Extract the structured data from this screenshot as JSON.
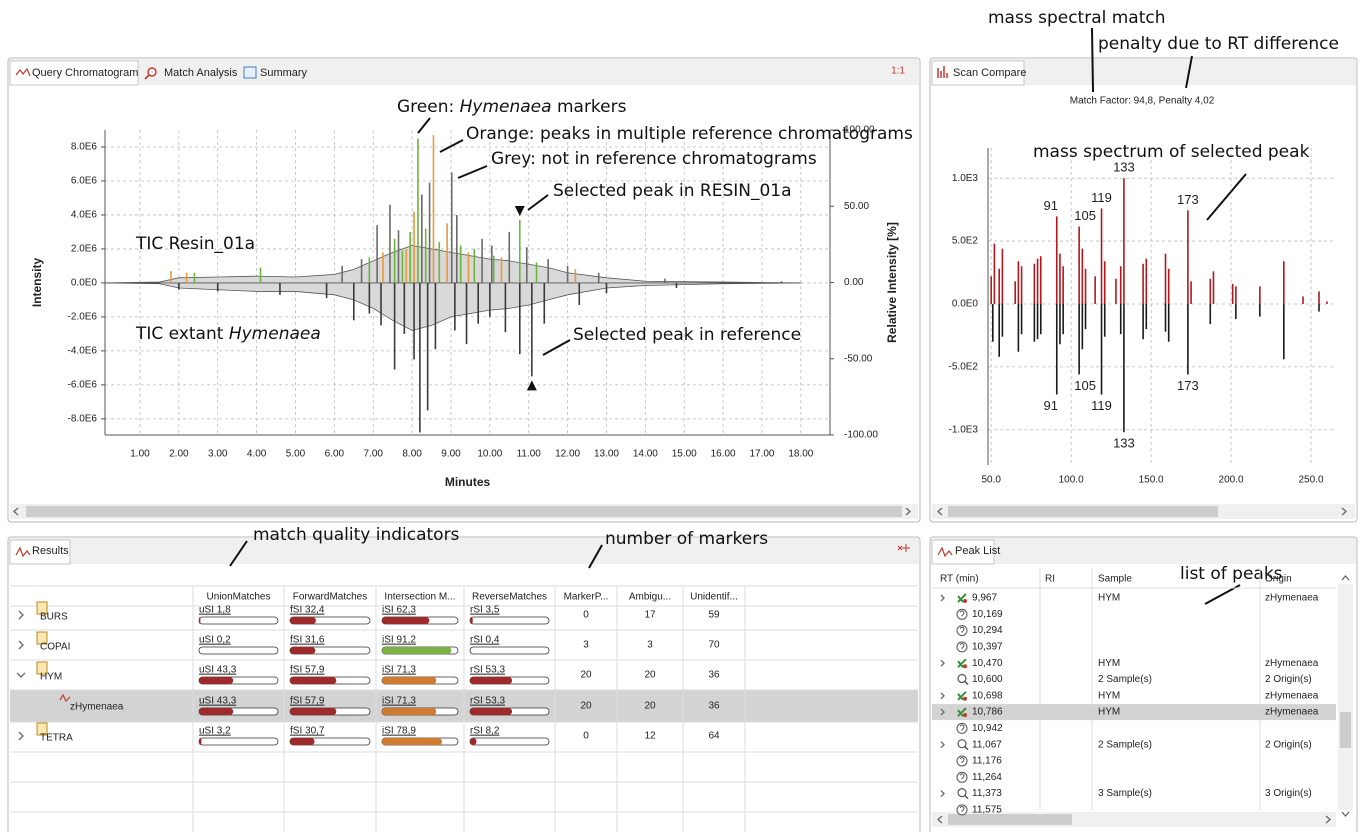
{
  "annotations": {
    "mass_spectral_match": "mass spectral match",
    "rt_penalty": "penalty due to RT difference",
    "match_quality": "match quality indicators",
    "number_of_markers": "number of markers",
    "list_of_peaks": "list of peaks"
  },
  "chromatogram_panel": {
    "tabs": [
      "Query Chromatogram",
      "Match Analysis",
      "Summary"
    ],
    "ratio": "1:1"
  },
  "spectrum_panel": {
    "tabs": [
      "Scan Compare"
    ]
  },
  "chart_data": [
    {
      "type": "chromatogram",
      "xlabel": "Minutes",
      "ylabel": "Intensity",
      "y2label": "Relative Intensity [%]",
      "xlim": [
        0.1,
        18.75
      ],
      "xticks": [
        {
          "value": 1,
          "label": "1.00"
        },
        {
          "value": 2,
          "label": "2.00"
        },
        {
          "value": 3,
          "label": "3.00"
        },
        {
          "value": 4,
          "label": "4.00"
        },
        {
          "value": 5,
          "label": "5.00"
        },
        {
          "value": 6,
          "label": "6.00"
        },
        {
          "value": 7,
          "label": "7.00"
        },
        {
          "value": 8,
          "label": "8.00"
        },
        {
          "value": 9,
          "label": "9.00"
        },
        {
          "value": 10,
          "label": "10.00"
        },
        {
          "value": 11,
          "label": "11.00"
        },
        {
          "value": 12,
          "label": "12.00"
        },
        {
          "value": 13,
          "label": "13.00"
        },
        {
          "value": 14,
          "label": "14.00"
        },
        {
          "value": 15,
          "label": "15.00"
        },
        {
          "value": 16,
          "label": "16.00"
        },
        {
          "value": 17,
          "label": "17.00"
        },
        {
          "value": 18,
          "label": "18.00"
        }
      ],
      "ylim": [
        -8950000,
        9000000
      ],
      "yticks": [
        {
          "value": 8000000,
          "label": "8.0E6"
        },
        {
          "value": 6000000,
          "label": "6.0E6"
        },
        {
          "value": 4000000,
          "label": "4.0E6"
        },
        {
          "value": 2000000,
          "label": "2.0E6"
        },
        {
          "value": 0,
          "label": "0.0E0"
        },
        {
          "value": -2000000,
          "label": "-2.0E6"
        },
        {
          "value": -4000000,
          "label": "-4.0E6"
        },
        {
          "value": -6000000,
          "label": "-6.0E6"
        },
        {
          "value": -8000000,
          "label": "-8.0E6"
        }
      ],
      "y2lim": [
        -100,
        100
      ],
      "y2ticks": [
        {
          "value": 100,
          "label": "100.00"
        },
        {
          "value": 50,
          "label": "50.00"
        },
        {
          "value": 0,
          "label": "0.00"
        },
        {
          "value": -50,
          "label": "-50.00"
        },
        {
          "value": -100,
          "label": "-100.00"
        }
      ],
      "grid": true,
      "areas": [
        {
          "color": "#d9d9d9",
          "x": [
            0.1,
            1.5,
            2,
            3,
            4,
            5,
            6,
            6.5,
            7,
            7.5,
            8,
            8.5,
            9,
            9.5,
            10,
            10.5,
            11,
            11.5,
            12,
            13,
            14,
            16,
            18
          ],
          "values": [
            0,
            50000,
            300000,
            350000,
            400000,
            350000,
            500000,
            800000,
            1300000,
            1800000,
            2200000,
            2000000,
            1800000,
            1600000,
            1400000,
            1300000,
            1100000,
            900000,
            600000,
            300000,
            100000,
            50000,
            0
          ]
        },
        {
          "color": "#d9d9d9",
          "x": [
            0.1,
            1.5,
            2,
            3,
            4,
            5,
            6,
            6.5,
            7,
            7.5,
            8,
            8.5,
            9,
            9.5,
            10,
            10.5,
            11,
            11.5,
            12,
            13,
            14,
            16,
            18
          ],
          "values": [
            0,
            -50000,
            -300000,
            -400000,
            -500000,
            -500000,
            -700000,
            -1000000,
            -1500000,
            -2200000,
            -2800000,
            -2500000,
            -2000000,
            -1800000,
            -1600000,
            -1500000,
            -1300000,
            -1000000,
            -700000,
            -300000,
            -150000,
            -50000,
            0
          ]
        }
      ],
      "series": [
        {
          "color": "#6db33f",
          "x": [
            2.4,
            4.1,
            6.9,
            7.55,
            7.75,
            7.95,
            8.15,
            8.35,
            8.7,
            9.25,
            9.6,
            10.1,
            10.77,
            11.2
          ],
          "values": [
            600000,
            900000,
            1500000,
            2600000,
            1900000,
            3000000,
            8500000,
            3200000,
            2400000,
            2200000,
            2000000,
            1600000,
            3700000,
            1200000
          ]
        },
        {
          "color": "#e69a3c",
          "x": [
            1.8,
            2.2,
            7.25,
            7.85,
            8.05,
            8.55,
            8.9,
            9.45,
            10.3,
            12.2
          ],
          "values": [
            700000,
            600000,
            1800000,
            2000000,
            4200000,
            8700000,
            3500000,
            1800000,
            1500000,
            800000
          ]
        },
        {
          "color": "#6b6b6b",
          "x": [
            6.2,
            6.7,
            7.1,
            7.43,
            7.65,
            8.25,
            8.45,
            9.02,
            9.15,
            9.8,
            10.05,
            10.5,
            10.95,
            11.5,
            12,
            12.8,
            14.5,
            17.5
          ],
          "values": [
            1000000,
            1400000,
            3400000,
            4600000,
            3100000,
            5200000,
            5900000,
            6500000,
            4000000,
            2600000,
            2200000,
            3000000,
            2100000,
            1400000,
            1000000,
            600000,
            250000,
            100000
          ]
        },
        {
          "color": "#3a3a3a",
          "x": [
            2,
            3,
            4.6,
            5.8,
            6.5,
            6.9,
            7.2,
            7.55,
            7.8,
            8.05,
            8.2,
            8.4,
            8.6,
            9.1,
            9.4,
            9.7,
            10,
            10.4,
            10.77,
            11.08,
            11.4,
            12.3,
            13,
            14.8
          ],
          "values": [
            -400000,
            -500000,
            -700000,
            -900000,
            -2200000,
            -1800000,
            -2500000,
            -5100000,
            -3000000,
            -4500000,
            -8800000,
            -7500000,
            -3900000,
            -2800000,
            -3600000,
            -2400000,
            -2000000,
            -2900000,
            -4200000,
            -5500000,
            -2400000,
            -1300000,
            -600000,
            -300000
          ]
        }
      ],
      "selected": {
        "x": [
          10.77,
          11.08
        ],
        "values": [
          3700000,
          -5500000
        ]
      },
      "annotations": [
        {
          "parts": [
            "Green: ",
            "Hymenaea",
            " markers"
          ]
        },
        {
          "parts": [
            "Orange: peaks in multiple reference chromatograms"
          ]
        },
        {
          "parts": [
            "Grey: not in reference chromatograms"
          ]
        },
        {
          "parts": [
            "Selected peak in RESIN_01a"
          ]
        },
        {
          "parts": [
            "TIC Resin_01a"
          ]
        },
        {
          "parts": [
            "TIC extant ",
            "Hymenaea"
          ]
        },
        {
          "parts": [
            "Selected peak in reference"
          ]
        }
      ]
    },
    {
      "type": "mass_spectrum",
      "title": "Match Factor: 94,8, Penalty 4,02",
      "annotation": "mass spectrum of selected peak",
      "xlim": [
        48,
        265
      ],
      "xticks": [
        {
          "value": 50,
          "label": "50.0"
        },
        {
          "value": 100,
          "label": "100.0"
        },
        {
          "value": 150,
          "label": "150.0"
        },
        {
          "value": 200,
          "label": "200.0"
        },
        {
          "value": 250,
          "label": "250.0"
        }
      ],
      "ylim": [
        -1280,
        1240
      ],
      "yticks": [
        {
          "value": 1000,
          "label": "1.0E3"
        },
        {
          "value": 500,
          "label": "5.0E2"
        },
        {
          "value": 0,
          "label": "0.0E0"
        },
        {
          "value": -500,
          "label": "-5.0E2"
        },
        {
          "value": -1000,
          "label": "-1.0E3"
        }
      ],
      "grid": true,
      "series": [
        {
          "color": "#b0191e",
          "x": [
            50,
            52,
            55,
            57,
            65,
            67,
            69,
            77,
            79,
            81,
            91,
            93,
            95,
            105,
            107,
            109,
            115,
            119,
            121,
            128,
            131,
            133,
            145,
            147,
            159,
            161,
            173,
            175,
            187,
            189,
            201,
            203,
            218,
            233,
            245,
            255,
            260
          ],
          "values": [
            220,
            480,
            280,
            440,
            180,
            340,
            300,
            320,
            360,
            380,
            696,
            400,
            300,
            616,
            440,
            280,
            220,
            760,
            340,
            200,
            300,
            1000,
            320,
            360,
            400,
            280,
            744,
            180,
            200,
            260,
            160,
            140,
            140,
            340,
            60,
            100,
            20
          ],
          "labels": [
            91,
            105,
            119,
            133,
            173
          ]
        },
        {
          "color": "#1a1a1a",
          "x": [
            51,
            55,
            57,
            67,
            69,
            77,
            79,
            81,
            91,
            93,
            95,
            105,
            107,
            109,
            119,
            121,
            131,
            133,
            145,
            147,
            159,
            161,
            173,
            187,
            203,
            218,
            233,
            255
          ],
          "values": [
            -300,
            -420,
            -260,
            -380,
            -240,
            -300,
            -280,
            -240,
            -720,
            -320,
            -240,
            -560,
            -360,
            -200,
            -720,
            -260,
            -240,
            -1020,
            -280,
            -200,
            -220,
            -300,
            -560,
            -160,
            -120,
            -100,
            -440,
            -60
          ],
          "labels": [
            91,
            105,
            119,
            133,
            173
          ]
        }
      ]
    }
  ],
  "results": {
    "tab": "Results",
    "columns": [
      "UnionMatches",
      "ForwardMatches",
      "Intersection M...",
      "ReverseMatches",
      "MarkerP...",
      "Ambigu...",
      "Unidentif..."
    ],
    "rows": [
      {
        "name": "BURS",
        "expanded": false,
        "scores": [
          {
            "label": "uSI 1,8",
            "value": 1.8,
            "color": "#9e2a2b"
          },
          {
            "label": "fSI 32,4",
            "value": 32.4,
            "color": "#9e2a2b"
          },
          {
            "label": "iSI 62,3",
            "value": 62.3,
            "color": "#9e2a2b"
          },
          {
            "label": "rSI 3,5",
            "value": 3.5,
            "color": "#9e2a2b"
          }
        ],
        "counts": [
          0,
          17,
          59
        ]
      },
      {
        "name": "COPAI",
        "expanded": false,
        "scores": [
          {
            "label": "uSI 0,2",
            "value": 0.2,
            "color": "#9e2a2b"
          },
          {
            "label": "fSI 31,6",
            "value": 31.6,
            "color": "#9e2a2b"
          },
          {
            "label": "iSI 91,2",
            "value": 91.2,
            "color": "#7cb342"
          },
          {
            "label": "rSI 0,4",
            "value": 0.4,
            "color": "#9e2a2b"
          }
        ],
        "counts": [
          3,
          3,
          70
        ]
      },
      {
        "name": "HYM",
        "expanded": true,
        "scores": [
          {
            "label": "uSI 43,3",
            "value": 43.3,
            "color": "#9e2a2b"
          },
          {
            "label": "fSI 57,9",
            "value": 57.9,
            "color": "#9e2a2b"
          },
          {
            "label": "iSI 71,3",
            "value": 71.3,
            "color": "#cf7b30"
          },
          {
            "label": "rSI 53,3",
            "value": 53.3,
            "color": "#9e2a2b"
          }
        ],
        "counts": [
          20,
          20,
          36
        ]
      },
      {
        "name": "zHymenaea",
        "child": true,
        "selected": true,
        "scores": [
          {
            "label": "uSI 43,3",
            "value": 43.3,
            "color": "#9e2a2b"
          },
          {
            "label": "fSI 57,9",
            "value": 57.9,
            "color": "#9e2a2b"
          },
          {
            "label": "iSI 71,3",
            "value": 71.3,
            "color": "#cf7b30"
          },
          {
            "label": "rSI 53,3",
            "value": 53.3,
            "color": "#9e2a2b"
          }
        ],
        "counts": [
          20,
          20,
          36
        ]
      },
      {
        "name": "TETRA",
        "expanded": false,
        "scores": [
          {
            "label": "uSI 3,2",
            "value": 3.2,
            "color": "#9e2a2b"
          },
          {
            "label": "fSI 30,7",
            "value": 30.7,
            "color": "#9e2a2b"
          },
          {
            "label": "iSI 78,9",
            "value": 78.9,
            "color": "#cf7b30"
          },
          {
            "label": "rSI 8,2",
            "value": 8.2,
            "color": "#9e2a2b"
          }
        ],
        "counts": [
          0,
          12,
          64
        ]
      }
    ]
  },
  "peak_list": {
    "tab": "Peak List",
    "columns": [
      "RT (min)",
      "RI",
      "Sample",
      "Origin"
    ],
    "rows": [
      {
        "rt": "9,967",
        "icon": "marker",
        "expandable": true,
        "sample": "HYM",
        "origin": "zHymenaea"
      },
      {
        "rt": "10,169",
        "icon": "unknown"
      },
      {
        "rt": "10,294",
        "icon": "unknown"
      },
      {
        "rt": "10,397",
        "icon": "unknown"
      },
      {
        "rt": "10,470",
        "icon": "marker",
        "expandable": true,
        "sample": "HYM",
        "origin": "zHymenaea"
      },
      {
        "rt": "10,600",
        "icon": "search",
        "sample": "2 Sample(s)",
        "origin": "2 Origin(s)"
      },
      {
        "rt": "10,698",
        "icon": "marker",
        "expandable": true,
        "sample": "HYM",
        "origin": "zHymenaea"
      },
      {
        "rt": "10,786",
        "icon": "marker",
        "expandable": true,
        "selected": true,
        "sample": "HYM",
        "origin": "zHymenaea"
      },
      {
        "rt": "10,942",
        "icon": "unknown"
      },
      {
        "rt": "11,067",
        "icon": "search",
        "expandable": true,
        "sample": "2 Sample(s)",
        "origin": "2 Origin(s)"
      },
      {
        "rt": "11,176",
        "icon": "unknown"
      },
      {
        "rt": "11,264",
        "icon": "unknown"
      },
      {
        "rt": "11,373",
        "icon": "search",
        "expandable": true,
        "sample": "3 Sample(s)",
        "origin": "3 Origin(s)"
      },
      {
        "rt": "11,575",
        "icon": "unknown"
      }
    ]
  }
}
